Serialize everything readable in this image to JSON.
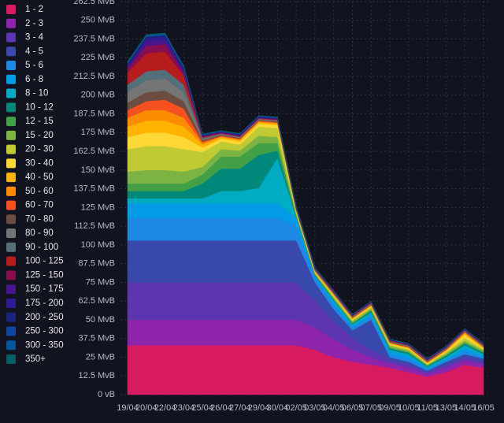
{
  "chart_data": {
    "type": "stacked-area",
    "categories": [
      "19/04",
      "20/04",
      "22/04",
      "23/04",
      "25/04",
      "26/04",
      "27/04",
      "29/04",
      "30/04",
      "02/05",
      "03/05",
      "04/05",
      "06/05",
      "07/05",
      "09/05",
      "10/05",
      "11/05",
      "13/05",
      "14/05",
      "16/05"
    ],
    "ylim": [
      0,
      262.5
    ],
    "yticks": [
      {
        "value": 0,
        "label": "0 vB"
      },
      {
        "value": 12.5,
        "label": "12.5 MvB"
      },
      {
        "value": 25,
        "label": "25 MvB"
      },
      {
        "value": 37.5,
        "label": "37.5 MvB"
      },
      {
        "value": 50,
        "label": "50 MvB"
      },
      {
        "value": 62.5,
        "label": "62.5 MvB"
      },
      {
        "value": 75,
        "label": "75 MvB"
      },
      {
        "value": 87.5,
        "label": "87.5 MvB"
      },
      {
        "value": 100,
        "label": "100 MvB"
      },
      {
        "value": 112.5,
        "label": "112.5 MvB"
      },
      {
        "value": 125,
        "label": "125 MvB"
      },
      {
        "value": 137.5,
        "label": "137.5 MvB"
      },
      {
        "value": 150,
        "label": "150 MvB"
      },
      {
        "value": 162.5,
        "label": "162.5 MvB"
      },
      {
        "value": 175,
        "label": "175 MvB"
      },
      {
        "value": 187.5,
        "label": "187.5 MvB"
      },
      {
        "value": 200,
        "label": "200 MvB"
      },
      {
        "value": 212.5,
        "label": "212.5 MvB"
      },
      {
        "value": 225,
        "label": "225 MvB"
      },
      {
        "value": 237.5,
        "label": "237.5 MvB"
      },
      {
        "value": 250,
        "label": "250 MvB"
      },
      {
        "value": 262.5,
        "label": "262.5 MvB"
      }
    ],
    "grid": true,
    "legend": "left",
    "series": [
      {
        "name": "1 - 2",
        "color": "#d81b60",
        "values": [
          33,
          33,
          33,
          33,
          33,
          33,
          33,
          33,
          33,
          33,
          30,
          25,
          22,
          20,
          18,
          15,
          12,
          15,
          20,
          18
        ]
      },
      {
        "name": "2 - 3",
        "color": "#8e24aa",
        "values": [
          17,
          17,
          17,
          17,
          17,
          17,
          17,
          17,
          17,
          17,
          15,
          12,
          8,
          5,
          3,
          3,
          2,
          3,
          3,
          2
        ]
      },
      {
        "name": "3 - 4",
        "color": "#5e35b1",
        "values": [
          25,
          25,
          25,
          25,
          25,
          25,
          25,
          25,
          25,
          25,
          18,
          12,
          8,
          5,
          2,
          2,
          1,
          2,
          2,
          2
        ]
      },
      {
        "name": "4 - 5",
        "color": "#3949ab",
        "values": [
          28,
          28,
          28,
          28,
          28,
          28,
          28,
          28,
          28,
          28,
          12,
          8,
          5,
          20,
          2,
          2,
          1,
          2,
          2,
          2
        ]
      },
      {
        "name": "5 - 6",
        "color": "#1e88e5",
        "values": [
          15,
          15,
          15,
          15,
          15,
          15,
          15,
          15,
          15,
          10,
          3,
          3,
          2,
          2,
          2,
          2,
          1,
          1,
          2,
          1
        ]
      },
      {
        "name": "6 - 8",
        "color": "#039be5",
        "values": [
          10,
          10,
          10,
          10,
          10,
          10,
          10,
          10,
          10,
          5,
          1,
          2,
          1,
          2,
          2,
          2,
          1,
          1,
          2,
          1
        ]
      },
      {
        "name": "8 - 10",
        "color": "#00acc1",
        "values": [
          3,
          3,
          3,
          3,
          3,
          8,
          8,
          10,
          30,
          1,
          0.5,
          1,
          1,
          1,
          1,
          1,
          0.5,
          1,
          2,
          1
        ]
      },
      {
        "name": "10 - 12",
        "color": "#00897b",
        "values": [
          5,
          5,
          5,
          5,
          10,
          15,
          15,
          22,
          5,
          0.5,
          0.5,
          0.5,
          0.5,
          1,
          1,
          1,
          0.5,
          1,
          1,
          1
        ]
      },
      {
        "name": "12 - 15",
        "color": "#43a047",
        "values": [
          5,
          5,
          5,
          5,
          6,
          8,
          8,
          8,
          5,
          0.5,
          0.5,
          0.5,
          0.5,
          0.5,
          0.5,
          0.5,
          0.5,
          0.5,
          1,
          0.5
        ]
      },
      {
        "name": "15 - 20",
        "color": "#7cb342",
        "values": [
          8,
          9,
          9,
          8,
          5,
          5,
          4,
          5,
          4,
          1,
          0.5,
          1,
          1,
          1,
          1,
          1,
          0.5,
          1,
          1,
          1
        ]
      },
      {
        "name": "20 - 30",
        "color": "#c0ca33",
        "values": [
          15,
          16,
          16,
          15,
          10,
          5,
          4,
          6,
          6,
          1,
          0.5,
          1,
          1,
          1,
          1,
          1,
          0.5,
          1,
          2,
          1
        ]
      },
      {
        "name": "30 - 40",
        "color": "#fdd835",
        "values": [
          8,
          9,
          9,
          8,
          3,
          2,
          2,
          2,
          2,
          0.5,
          0.5,
          0.5,
          0.5,
          0.5,
          0.5,
          0.5,
          0.5,
          0.5,
          2,
          0.5
        ]
      },
      {
        "name": "40 - 50",
        "color": "#ffb300",
        "values": [
          7,
          8,
          8,
          7,
          2,
          1,
          1,
          1,
          1,
          0.5,
          0.3,
          0.3,
          0.3,
          0.5,
          0.3,
          0.3,
          0.3,
          0.5,
          1,
          0.5
        ]
      },
      {
        "name": "50 - 60",
        "color": "#fb8c00",
        "values": [
          6,
          7,
          7,
          6,
          1,
          0.5,
          0.5,
          0.5,
          0.5,
          0.3,
          0.3,
          0.3,
          0.3,
          0.3,
          0.3,
          0.3,
          0.3,
          0.3,
          0.5,
          0.3
        ]
      },
      {
        "name": "60 - 70",
        "color": "#f4511e",
        "values": [
          5,
          6,
          7,
          6,
          1,
          0.5,
          0.5,
          0.5,
          0.5,
          0.3,
          0.3,
          0.3,
          0.3,
          0.3,
          0.3,
          0.3,
          0.3,
          0.3,
          0.3,
          0.3
        ]
      },
      {
        "name": "70 - 80",
        "color": "#6d4c41",
        "values": [
          5,
          6,
          6,
          5,
          1,
          0.5,
          0.5,
          0.5,
          0.5,
          0.3,
          0.3,
          0.3,
          0.3,
          0.3,
          0.3,
          0.3,
          0.3,
          0.3,
          0.3,
          0.3
        ]
      },
      {
        "name": "80 - 90",
        "color": "#757575",
        "values": [
          7,
          8,
          8,
          6,
          1,
          0.5,
          0.5,
          0.5,
          0.5,
          0.3,
          0.3,
          0.3,
          0.3,
          0.3,
          0.3,
          0.3,
          0.3,
          0.3,
          0.3,
          0.3
        ]
      },
      {
        "name": "90 - 100",
        "color": "#546e7a",
        "values": [
          5,
          6,
          6,
          5,
          0.5,
          0.3,
          0.3,
          0.3,
          0.3,
          0.3,
          0.3,
          0.3,
          0.3,
          0.3,
          0.3,
          0.3,
          0.3,
          0.3,
          0.3,
          0.3
        ]
      },
      {
        "name": "100 - 125",
        "color": "#b71c1c",
        "values": [
          8,
          12,
          12,
          6,
          0.5,
          0.3,
          0.3,
          0.3,
          0.3,
          0.3,
          0.3,
          0.3,
          0.3,
          0.3,
          0.3,
          0.3,
          0.3,
          0.3,
          0.3,
          0.3
        ]
      },
      {
        "name": "125 - 150",
        "color": "#880e4f",
        "values": [
          3,
          5,
          5,
          2,
          0.5,
          0.3,
          0.3,
          0.3,
          0.3,
          0.2,
          0.2,
          0.2,
          0.2,
          0.2,
          0.2,
          0.2,
          0.2,
          0.2,
          0.2,
          0.2
        ]
      },
      {
        "name": "150 - 175",
        "color": "#4a148c",
        "values": [
          1,
          3,
          3,
          1,
          0.3,
          0.3,
          0.3,
          0.3,
          0.3,
          0.2,
          0.2,
          0.2,
          0.2,
          0.2,
          0.2,
          0.2,
          0.2,
          0.2,
          0.2,
          0.2
        ]
      },
      {
        "name": "175 - 200",
        "color": "#311b92",
        "values": [
          1,
          2,
          2,
          1,
          0.3,
          0.3,
          0.3,
          0.3,
          0.3,
          0.2,
          0.2,
          0.2,
          0.2,
          0.2,
          0.2,
          0.2,
          0.2,
          0.2,
          0.2,
          0.2
        ]
      },
      {
        "name": "200 - 250",
        "color": "#1a237e",
        "values": [
          1,
          1,
          1,
          1,
          0.3,
          0.3,
          0.3,
          0.3,
          0.3,
          0.2,
          0.2,
          0.2,
          0.2,
          0.2,
          0.2,
          0.2,
          0.2,
          0.2,
          0.2,
          0.2
        ]
      },
      {
        "name": "250 - 300",
        "color": "#0d47a1",
        "values": [
          0.5,
          0.5,
          0.5,
          0.5,
          0.2,
          0.2,
          0.2,
          0.2,
          0.2,
          0.1,
          0.1,
          0.1,
          0.1,
          0.1,
          0.1,
          0.1,
          0.1,
          0.1,
          0.1,
          0.1
        ]
      },
      {
        "name": "300 - 350",
        "color": "#01579b",
        "values": [
          0.5,
          0.5,
          0.5,
          0.5,
          0.2,
          0.2,
          0.2,
          0.2,
          0.2,
          0.1,
          0.1,
          0.1,
          0.1,
          0.1,
          0.1,
          0.1,
          0.1,
          0.1,
          0.1,
          0.1
        ]
      },
      {
        "name": "350+",
        "color": "#006064",
        "values": [
          0.5,
          0.5,
          0.5,
          0.5,
          0.2,
          0.2,
          0.2,
          0.2,
          0.2,
          0.1,
          0.1,
          0.1,
          0.1,
          0.1,
          0.1,
          0.1,
          0.1,
          0.1,
          0.1,
          0.1
        ]
      }
    ]
  }
}
